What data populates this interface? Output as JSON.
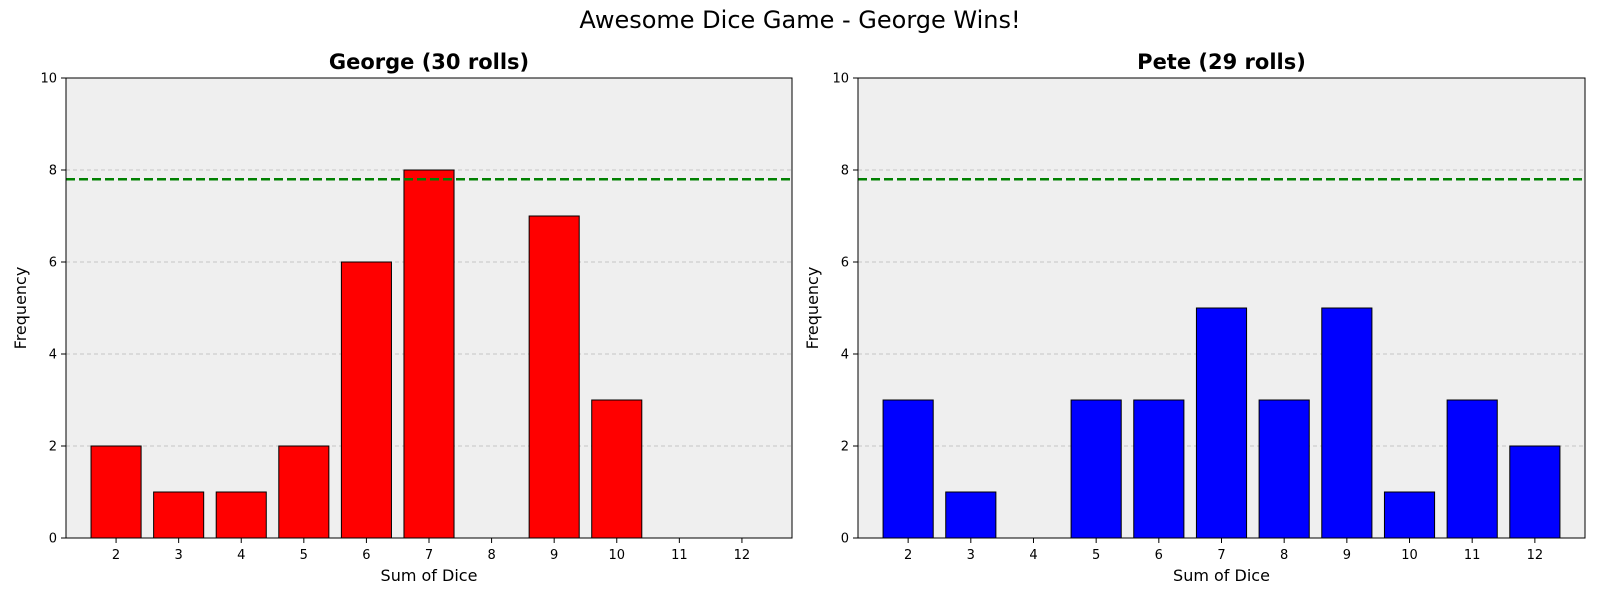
{
  "figure": {
    "suptitle": "Awesome Dice Game - George Wins!"
  },
  "chart_data": [
    {
      "type": "bar",
      "title": "George (30 rolls)",
      "xlabel": "Sum of Dice",
      "ylabel": "Frequency",
      "categories": [
        "2",
        "3",
        "4",
        "5",
        "6",
        "7",
        "8",
        "9",
        "10",
        "11",
        "12"
      ],
      "values": [
        2,
        1,
        1,
        2,
        6,
        8,
        0,
        7,
        3,
        0,
        0
      ],
      "ylim": [
        0,
        10
      ],
      "yticks": [
        0,
        2,
        4,
        6,
        8,
        10
      ],
      "reference_line": {
        "y": 7.8,
        "color": "#008000",
        "style": "dashed"
      },
      "bar_color": "#ff0000",
      "grid": "y-dashed",
      "background": "#efefef"
    },
    {
      "type": "bar",
      "title": "Pete (29 rolls)",
      "xlabel": "Sum of Dice",
      "ylabel": "Frequency",
      "categories": [
        "2",
        "3",
        "4",
        "5",
        "6",
        "7",
        "8",
        "9",
        "10",
        "11",
        "12"
      ],
      "values": [
        3,
        1,
        0,
        3,
        3,
        5,
        3,
        5,
        1,
        3,
        2
      ],
      "ylim": [
        0,
        10
      ],
      "yticks": [
        0,
        2,
        4,
        6,
        8,
        10
      ],
      "reference_line": {
        "y": 7.8,
        "color": "#008000",
        "style": "dashed"
      },
      "bar_color": "#0000ff",
      "grid": "y-dashed",
      "background": "#efefef"
    }
  ]
}
